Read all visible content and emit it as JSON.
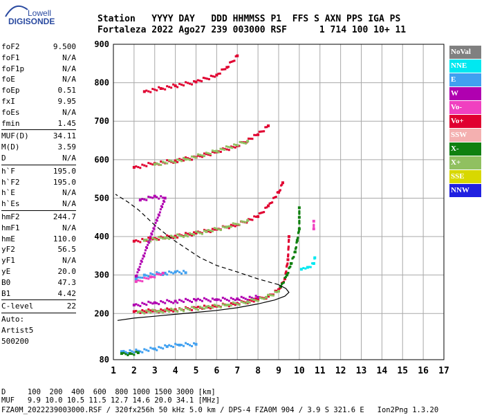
{
  "logo": {
    "line1": "Lowell",
    "line2": "DIGISONDE"
  },
  "header": {
    "line1": "Station   YYYY DAY   DDD HHMMSS P1  FFS S AXN PPS IGA PS",
    "line2": "Fortaleza 2022 Ago27 239 003000 RSF      1 714 100 10+ 11"
  },
  "scaled_params": [
    {
      "group": [
        {
          "name": "foF2",
          "value": "9.500"
        },
        {
          "name": "foF1",
          "value": "N/A"
        },
        {
          "name": "foF1p",
          "value": "N/A"
        },
        {
          "name": "foE",
          "value": "N/A"
        },
        {
          "name": "foEp",
          "value": "0.51"
        },
        {
          "name": "fxI",
          "value": "9.95"
        },
        {
          "name": "foEs",
          "value": "N/A"
        },
        {
          "name": "fmin",
          "value": "1.45"
        }
      ]
    },
    {
      "group": [
        {
          "name": "MUF(D)",
          "value": "34.11"
        },
        {
          "name": "M(D)",
          "value": "3.59"
        },
        {
          "name": "D",
          "value": "N/A"
        }
      ]
    },
    {
      "group": [
        {
          "name": "h`F",
          "value": "195.0"
        },
        {
          "name": "h`F2",
          "value": "195.0"
        },
        {
          "name": "h`E",
          "value": "N/A"
        },
        {
          "name": "h`Es",
          "value": "N/A"
        }
      ]
    },
    {
      "group": [
        {
          "name": "hmF2",
          "value": "244.7"
        },
        {
          "name": "hmF1",
          "value": "N/A"
        },
        {
          "name": "hmE",
          "value": "110.0"
        },
        {
          "name": "yF2",
          "value": "56.5"
        },
        {
          "name": "yF1",
          "value": "N/A"
        },
        {
          "name": "yE",
          "value": "20.0"
        },
        {
          "name": "B0",
          "value": "47.3"
        },
        {
          "name": "B1",
          "value": "4.42"
        }
      ]
    },
    {
      "group": [
        {
          "name": "C-level",
          "value": "22"
        }
      ]
    }
  ],
  "autoscale": {
    "line1": "Auto:",
    "line2": "Artist5",
    "line3": "500200"
  },
  "legend": [
    {
      "label": "NoVal",
      "bg": "#808080",
      "fg": "#ffffff"
    },
    {
      "label": "NNE",
      "bg": "#00e8f0",
      "fg": "#ffffff"
    },
    {
      "label": "E",
      "bg": "#40a0f0",
      "fg": "#ffffff"
    },
    {
      "label": "W",
      "bg": "#b000b0",
      "fg": "#ffffff"
    },
    {
      "label": "Vo-",
      "bg": "#f040c0",
      "fg": "#ffffff"
    },
    {
      "label": "Vo+",
      "bg": "#e00030",
      "fg": "#ffffff"
    },
    {
      "label": "SSW",
      "bg": "#f4b0b0",
      "fg": "#ffffff"
    },
    {
      "label": "X-",
      "bg": "#108010",
      "fg": "#ffffff"
    },
    {
      "label": "X+",
      "bg": "#90c060",
      "fg": "#ffffff"
    },
    {
      "label": "SSE",
      "bg": "#d8d800",
      "fg": "#ffffff"
    },
    {
      "label": "NNW",
      "bg": "#2020e0",
      "fg": "#ffffff"
    }
  ],
  "footer": {
    "line1": "D     100  200  400  600  800 1000 1500 3000 [km]",
    "line2": "MUF   9.9 10.0 10.5 11.5 12.7 14.6 20.0 34.1 [MHz]",
    "line3": "FZA0M_2022239003000.RSF / 320fx256h 50 kHz 5.0 km / DPS-4 FZA0M 904 / 3.9 S 321.6 E   Ion2Png 1.3.20"
  },
  "chart_data": {
    "type": "scatter",
    "xlim": [
      1,
      17
    ],
    "ylim": [
      80,
      900
    ],
    "x_ticks": [
      1,
      2,
      3,
      4,
      5,
      6,
      7,
      8,
      9,
      10,
      11,
      12,
      13,
      14,
      15,
      16,
      17
    ],
    "y_ticks": [
      80,
      200,
      300,
      400,
      500,
      600,
      700,
      800,
      900
    ],
    "grid": true,
    "series": [
      {
        "color": "#e00030",
        "points": [
          [
            2.0,
            205
          ],
          [
            3,
            207
          ],
          [
            4,
            210
          ],
          [
            5,
            214
          ],
          [
            6,
            219
          ],
          [
            7,
            226
          ],
          [
            8,
            236
          ],
          [
            8.5,
            245
          ],
          [
            9,
            262
          ],
          [
            9.3,
            290
          ],
          [
            9.45,
            340
          ],
          [
            9.5,
            400
          ]
        ]
      },
      {
        "color": "#b000b0",
        "points": [
          [
            2.0,
            222
          ],
          [
            3,
            228
          ],
          [
            4,
            232
          ],
          [
            5,
            235
          ],
          [
            6,
            236
          ],
          [
            7,
            238
          ],
          [
            8,
            242
          ]
        ]
      },
      {
        "color": "#90c060",
        "points": [
          [
            2.2,
            204
          ],
          [
            3.2,
            206
          ],
          [
            4.3,
            210
          ],
          [
            5.5,
            216
          ],
          [
            6.5,
            222
          ],
          [
            7.5,
            230
          ],
          [
            8.4,
            242
          ],
          [
            9,
            258
          ]
        ]
      },
      {
        "color": "#108010",
        "points": [
          [
            9.1,
            270
          ],
          [
            9.4,
            300
          ],
          [
            9.6,
            330
          ],
          [
            9.8,
            360
          ],
          [
            9.9,
            390
          ],
          [
            10.0,
            420
          ],
          [
            10.0,
            450
          ],
          [
            10.0,
            475
          ]
        ]
      },
      {
        "color": "#e00030",
        "points": [
          [
            2,
            388
          ],
          [
            3,
            395
          ],
          [
            4,
            401
          ],
          [
            5,
            409
          ],
          [
            6,
            419
          ],
          [
            7,
            431
          ],
          [
            8,
            452
          ],
          [
            8.5,
            480
          ],
          [
            9,
            515
          ],
          [
            9.2,
            540
          ]
        ]
      },
      {
        "color": "#90c060",
        "points": [
          [
            2.5,
            390
          ],
          [
            3.5,
            397
          ],
          [
            4.5,
            404
          ],
          [
            5.5,
            413
          ],
          [
            6.5,
            425
          ],
          [
            7.5,
            442
          ]
        ]
      },
      {
        "color": "#e00030",
        "points": [
          [
            2,
            580
          ],
          [
            3,
            590
          ],
          [
            4,
            597
          ],
          [
            5,
            606
          ],
          [
            6,
            620
          ],
          [
            7,
            636
          ],
          [
            8,
            665
          ],
          [
            8.5,
            688
          ]
        ]
      },
      {
        "color": "#90c060",
        "points": [
          [
            3,
            588
          ],
          [
            4.5,
            601
          ],
          [
            6,
            622
          ],
          [
            7.5,
            648
          ]
        ]
      },
      {
        "color": "#e00030",
        "points": [
          [
            2.5,
            777
          ],
          [
            3.3,
            785
          ],
          [
            4,
            792
          ],
          [
            5,
            802
          ],
          [
            6,
            820
          ],
          [
            6.5,
            840
          ],
          [
            7,
            870
          ]
        ]
      },
      {
        "color": "#40a0f0",
        "points": [
          [
            2.1,
            290
          ],
          [
            2.5,
            300
          ],
          [
            3.5,
            305
          ],
          [
            4,
            308
          ],
          [
            4.5,
            306
          ]
        ]
      },
      {
        "color": "#f040c0",
        "points": [
          [
            2.1,
            283
          ],
          [
            2.8,
            295
          ],
          [
            3.4,
            305
          ]
        ]
      },
      {
        "color": "#b000b0",
        "points": [
          [
            2.3,
            495
          ],
          [
            3,
            505
          ],
          [
            3.5,
            500
          ],
          [
            2.1,
            297
          ]
        ]
      },
      {
        "color": "#40a0f0",
        "points": [
          [
            1.4,
            101
          ],
          [
            2.2,
            102
          ],
          [
            3,
            108
          ],
          [
            3.6,
            114
          ],
          [
            4.2,
            118
          ],
          [
            5.0,
            120
          ]
        ]
      },
      {
        "color": "#108010",
        "points": [
          [
            1.4,
            96
          ],
          [
            1.8,
            96
          ],
          [
            2.2,
            98
          ]
        ]
      },
      {
        "color": "#00e8f0",
        "points": [
          [
            10.1,
            315
          ],
          [
            10.4,
            320
          ],
          [
            10.7,
            330
          ],
          [
            10.75,
            345
          ]
        ]
      },
      {
        "color": "#f040c0",
        "points": [
          [
            10.7,
            420
          ],
          [
            10.7,
            440
          ]
        ]
      }
    ],
    "profile_curve": {
      "solid": [
        [
          1.2,
          182
        ],
        [
          2,
          188
        ],
        [
          3,
          193
        ],
        [
          4,
          198
        ],
        [
          5,
          203
        ],
        [
          6,
          208
        ],
        [
          7,
          215
        ],
        [
          8,
          225
        ],
        [
          8.8,
          235
        ],
        [
          9.3,
          245
        ],
        [
          9.5,
          255
        ],
        [
          9.35,
          265
        ],
        [
          9.0,
          275
        ]
      ],
      "dashed": [
        [
          9.0,
          275
        ],
        [
          8.0,
          290
        ],
        [
          7.0,
          308
        ],
        [
          6.0,
          325
        ],
        [
          5.2,
          345
        ],
        [
          4.5,
          370
        ],
        [
          3.8,
          395
        ],
        [
          3.0,
          430
        ],
        [
          2.2,
          470
        ],
        [
          1.7,
          490
        ],
        [
          1.1,
          510
        ]
      ]
    }
  }
}
